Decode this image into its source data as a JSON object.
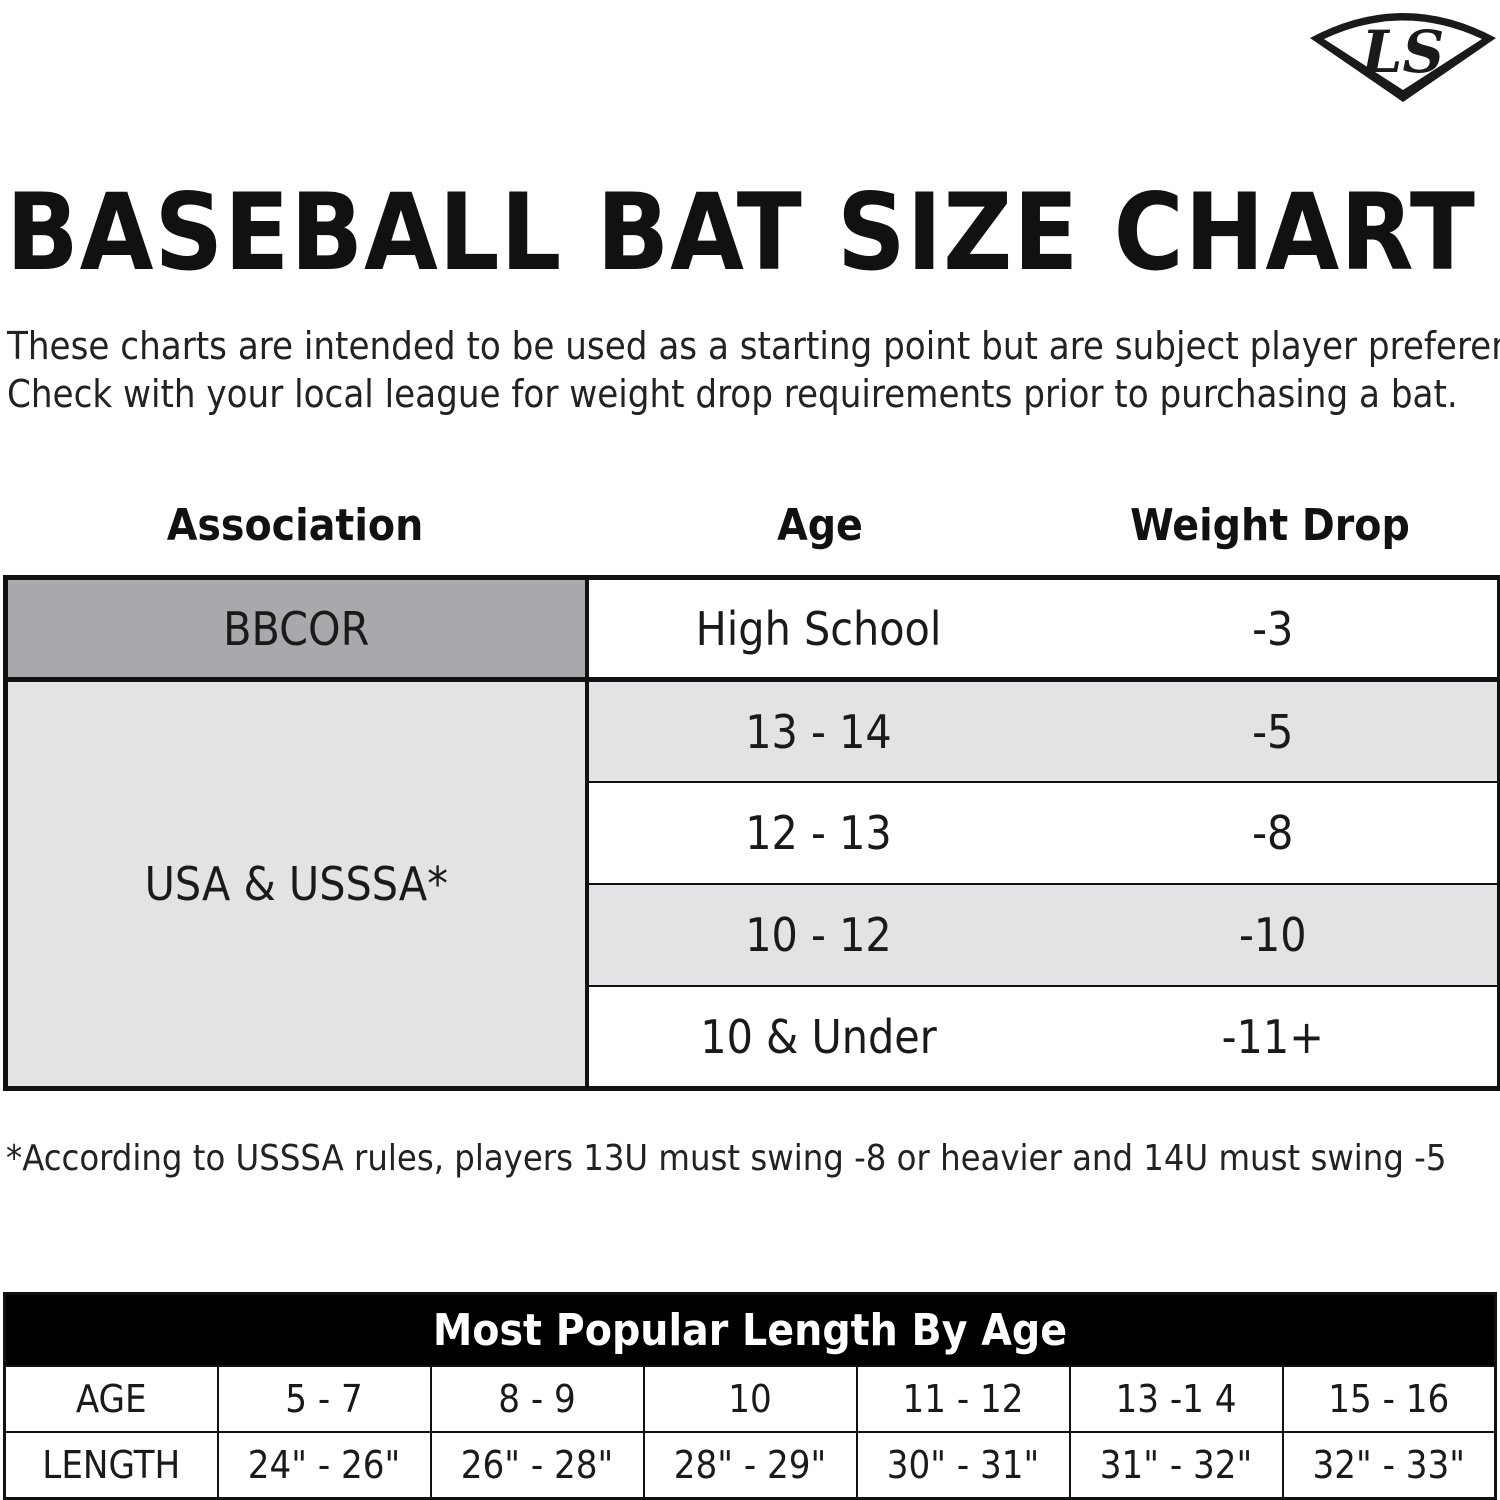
{
  "brand": {
    "logo_text": "LS"
  },
  "title": "BASEBALL BAT SIZE CHART",
  "intro": [
    "These charts are intended to be used as a starting point but are subject  player preference.",
    "Check with your local league for weight drop requirements prior to purchasing a bat."
  ],
  "chart_data": [
    {
      "type": "table",
      "columns": [
        "Association",
        "Age",
        "Weight Drop"
      ],
      "rows": [
        [
          "BBCOR",
          "High School",
          "-3"
        ],
        [
          "USA & USSSA*",
          "13 - 14",
          "-5"
        ],
        [
          "USA & USSSA*",
          "12 - 13",
          "-8"
        ],
        [
          "USA & USSSA*",
          "10 - 12",
          "-10"
        ],
        [
          "USA & USSSA*",
          "10 & Under",
          "-11+"
        ]
      ],
      "groups": [
        {
          "association": "BBCOR",
          "entries": [
            {
              "age": "High School",
              "drop": "-3"
            }
          ]
        },
        {
          "association": "USA & USSSA*",
          "entries": [
            {
              "age": "13 - 14",
              "drop": "-5"
            },
            {
              "age": "12 - 13",
              "drop": "-8"
            },
            {
              "age": "10 - 12",
              "drop": "-10"
            },
            {
              "age": "10 & Under",
              "drop": "-11+"
            }
          ]
        }
      ]
    },
    {
      "type": "table",
      "title": "Most Popular Length By Age",
      "row_labels": [
        "AGE",
        "LENGTH"
      ],
      "ages": [
        "5 - 7",
        "8 - 9",
        "10",
        "11 - 12",
        "13 -1 4",
        "15 - 16"
      ],
      "lengths": [
        "24\" - 26\"",
        "26\" - 28\"",
        "28\" - 29\"",
        "30\" - 31\"",
        "31\" - 32\"",
        "32\" - 33\""
      ]
    }
  ],
  "footnote": "*According to USSSA rules, players 13U must swing -8 or heavier  and 14U must swing -5",
  "colors": {
    "dark_grey": "#a8a9ac",
    "light_grey": "#e2e3e5",
    "black": "#000000",
    "white": "#ffffff"
  }
}
